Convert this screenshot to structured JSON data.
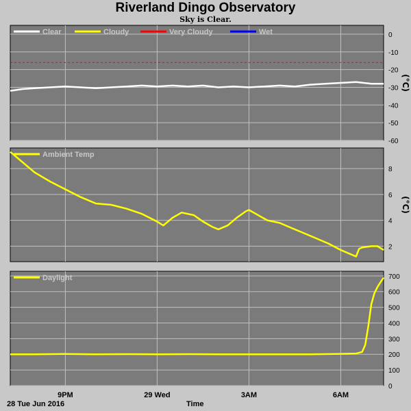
{
  "title": "Riverland Dingo Observatory",
  "subtitle": "Sky is Clear.",
  "date_label": "28 Tue Jun 2016",
  "time_label": "Time",
  "colors": {
    "plot_bg": "#7b7b7b",
    "grid": "#c0c0c0",
    "clear": "#ffffff",
    "cloudy": "#ffff00",
    "very_cloudy": "#ff0000",
    "wet": "#0000ff",
    "page_bg": "#c8c8c8"
  },
  "x_axis": {
    "ticks": [
      {
        "label": "9PM",
        "hour": 21
      },
      {
        "label": "29 Wed",
        "hour": 24
      },
      {
        "label": "3AM",
        "hour": 27
      },
      {
        "label": "6AM",
        "hour": 30
      }
    ],
    "range_hours": [
      19.2,
      31.4
    ]
  },
  "chart_data": [
    {
      "type": "line",
      "legend": [
        "Clear",
        "Cloudy",
        "Very Cloudy",
        "Wet"
      ],
      "ylabel": "(°C)",
      "ylim": [
        -60,
        5
      ],
      "yticks": [
        0,
        -10,
        -20,
        -30,
        -40,
        -50,
        -60
      ],
      "threshold": {
        "series": "Very Cloudy",
        "value": -16
      },
      "series": [
        {
          "name": "Clear",
          "x": [
            19.2,
            19.6,
            20.0,
            20.5,
            21.0,
            21.5,
            22.0,
            22.5,
            23.0,
            23.5,
            24.0,
            24.5,
            25.0,
            25.5,
            26.0,
            26.5,
            27.0,
            27.5,
            28.0,
            28.5,
            29.0,
            29.5,
            30.0,
            30.5,
            31.0,
            31.4
          ],
          "y": [
            -32,
            -31,
            -30.5,
            -30,
            -29.5,
            -30,
            -30.5,
            -30,
            -29.5,
            -29,
            -29.5,
            -29,
            -29.5,
            -29,
            -30,
            -29.5,
            -30,
            -29.5,
            -29,
            -29.5,
            -28.5,
            -28,
            -27.5,
            -27,
            -28,
            -28
          ]
        }
      ]
    },
    {
      "type": "line",
      "legend": [
        "Ambient Temp"
      ],
      "ylabel": "(°C)",
      "ylim": [
        0.8,
        9.6
      ],
      "yticks": [
        2,
        4,
        6,
        8
      ],
      "series": [
        {
          "name": "Ambient Temp",
          "x": [
            19.2,
            19.5,
            20.0,
            20.5,
            21.0,
            21.5,
            22.0,
            22.5,
            23.0,
            23.5,
            24.0,
            24.2,
            24.5,
            24.8,
            25.2,
            25.5,
            25.8,
            26.0,
            26.3,
            26.6,
            26.9,
            27.0,
            27.3,
            27.6,
            28.0,
            28.4,
            28.8,
            29.2,
            29.6,
            30.0,
            30.3,
            30.5,
            30.6,
            30.7,
            31.0,
            31.2,
            31.4
          ],
          "y": [
            9.3,
            8.7,
            7.7,
            7.0,
            6.4,
            5.8,
            5.3,
            5.2,
            4.9,
            4.5,
            3.9,
            3.6,
            4.2,
            4.6,
            4.4,
            3.9,
            3.5,
            3.3,
            3.6,
            4.2,
            4.7,
            4.8,
            4.4,
            4.0,
            3.8,
            3.4,
            3.0,
            2.6,
            2.2,
            1.7,
            1.4,
            1.2,
            1.8,
            1.9,
            2.0,
            2.0,
            1.7
          ]
        }
      ]
    },
    {
      "type": "line",
      "legend": [
        "Daylight"
      ],
      "ylim": [
        0,
        730
      ],
      "yticks": [
        0,
        100,
        200,
        300,
        400,
        500,
        600,
        700
      ],
      "series": [
        {
          "name": "Daylight",
          "x": [
            19.2,
            20.0,
            21.0,
            22.0,
            23.0,
            24.0,
            25.0,
            26.0,
            27.0,
            28.0,
            29.0,
            30.0,
            30.5,
            30.7,
            30.8,
            30.9,
            31.0,
            31.1,
            31.2,
            31.3,
            31.4
          ],
          "y": [
            200,
            200,
            202,
            200,
            201,
            200,
            201,
            200,
            200,
            200,
            200,
            203,
            205,
            215,
            260,
            380,
            520,
            590,
            630,
            660,
            690
          ]
        }
      ]
    }
  ]
}
